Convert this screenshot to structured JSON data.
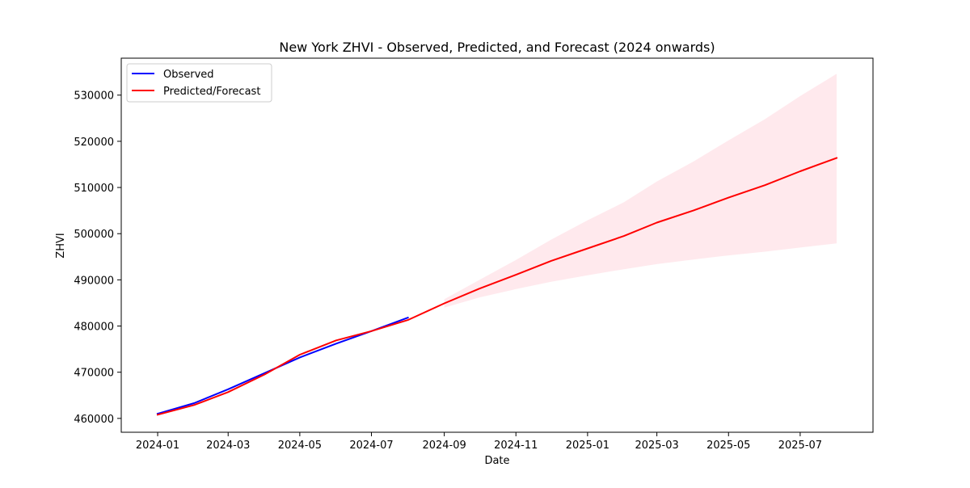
{
  "chart_data": {
    "type": "line",
    "title": "New York ZHVI - Observed, Predicted, and Forecast (2024 onwards)",
    "xlabel": "Date",
    "ylabel": "ZHVI",
    "xlim": [
      "2023-12-01",
      "2025-09-01"
    ],
    "ylim": [
      457000,
      538000
    ],
    "x_ticks": [
      "2024-01",
      "2024-03",
      "2024-05",
      "2024-07",
      "2024-09",
      "2024-11",
      "2025-01",
      "2025-03",
      "2025-05",
      "2025-07"
    ],
    "y_ticks": [
      460000,
      470000,
      480000,
      490000,
      500000,
      510000,
      520000,
      530000
    ],
    "grid": false,
    "legend_position": "top-left",
    "series": [
      {
        "name": "Observed",
        "color": "#0000ff",
        "x": [
          "2024-01-01",
          "2024-02-01",
          "2024-03-01",
          "2024-04-01",
          "2024-05-01",
          "2024-06-01",
          "2024-07-01",
          "2024-08-01"
        ],
        "values": [
          461000,
          463300,
          466300,
          469800,
          473200,
          476200,
          478900,
          481800
        ]
      },
      {
        "name": "Predicted/Forecast",
        "color": "#ff0000",
        "x": [
          "2024-01-01",
          "2024-02-01",
          "2024-03-01",
          "2024-04-01",
          "2024-05-01",
          "2024-06-01",
          "2024-07-01",
          "2024-08-01",
          "2024-09-01",
          "2024-10-01",
          "2024-11-01",
          "2024-12-01",
          "2025-01-01",
          "2025-02-01",
          "2025-03-01",
          "2025-04-01",
          "2025-05-01",
          "2025-06-01",
          "2025-07-01",
          "2025-08-01"
        ],
        "values": [
          460800,
          462900,
          465700,
          469500,
          473800,
          476900,
          478900,
          481300,
          484900,
          488100,
          491100,
          494100,
          496800,
          499500,
          502400,
          505000,
          507800,
          510500,
          513500,
          516400
        ]
      }
    ],
    "band": {
      "color": "#ffc0cb",
      "x": [
        "2024-09-01",
        "2024-10-01",
        "2024-11-01",
        "2024-12-01",
        "2025-01-01",
        "2025-02-01",
        "2025-03-01",
        "2025-04-01",
        "2025-05-01",
        "2025-06-01",
        "2025-07-01",
        "2025-08-01"
      ],
      "upper": [
        485800,
        490000,
        494300,
        498700,
        502900,
        506800,
        511300,
        515600,
        520200,
        524800,
        529800,
        534600
      ],
      "lower": [
        484000,
        486200,
        488000,
        489600,
        491000,
        492300,
        493400,
        494400,
        495300,
        496100,
        497000,
        497900
      ]
    }
  }
}
